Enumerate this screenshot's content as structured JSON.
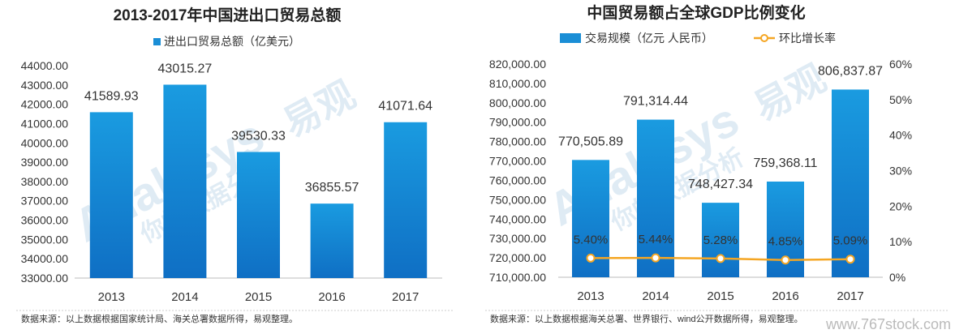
{
  "colors": {
    "bar_top": "#1a9be0",
    "bar_bottom": "#0f6fc4",
    "line": "#f5a623",
    "text": "#333333"
  },
  "charts": {
    "left": {
      "title": "2013-2017年中国进出口贸易总额",
      "source": "数据来源：以上数据根据国家统计局、海关总署数据所得，易观整理。"
    },
    "right": {
      "title": "中国贸易额占全球GDP比例变化",
      "source": "数据来源：以上数据根据海关总署、世界银行、wind公开数据所得，易观整理。",
      "watermark": "www.767stock.com"
    }
  },
  "watermarks": [
    "易观",
    "你的数据分析",
    "Analysys"
  ],
  "chart_data": [
    {
      "type": "bar",
      "title": "2013-2017年中国进出口贸易总额",
      "categories": [
        "2013",
        "2014",
        "2015",
        "2016",
        "2017"
      ],
      "series": [
        {
          "name": "进出口贸易总额（亿美元）",
          "values": [
            41589.93,
            43015.27,
            39530.33,
            36855.57,
            41071.64
          ],
          "labels": [
            "41589.93",
            "43015.27",
            "39530.33",
            "36855.57",
            "41071.64"
          ]
        }
      ],
      "ylim": [
        33000,
        44000
      ],
      "yticks": [
        "33000.00",
        "34000.00",
        "35000.00",
        "36000.00",
        "37000.00",
        "38000.00",
        "39000.00",
        "40000.00",
        "41000.00",
        "42000.00",
        "43000.00",
        "44000.00"
      ],
      "legend": "top",
      "grid": false
    },
    {
      "type": "bar+line",
      "title": "中国贸易额占全球GDP比例变化",
      "categories": [
        "2013",
        "2014",
        "2015",
        "2016",
        "2017"
      ],
      "series": [
        {
          "name": "交易规模（亿元 人民币）",
          "type": "bar",
          "axis": "left",
          "values": [
            770505.89,
            791314.44,
            748427.34,
            759368.11,
            806837.87
          ],
          "labels": [
            "770,505.89",
            "791,314.44",
            "748,427.34",
            "759,368.11",
            "806,837.87"
          ]
        },
        {
          "name": "环比增长率",
          "type": "line",
          "axis": "right",
          "values": [
            5.4,
            5.44,
            5.28,
            4.85,
            5.09
          ],
          "labels": [
            "5.40%",
            "5.44%",
            "5.28%",
            "4.85%",
            "5.09%"
          ]
        }
      ],
      "ylim": [
        710000,
        820000
      ],
      "yticks": [
        "710,000.00",
        "720,000.00",
        "730,000.00",
        "740,000.00",
        "750,000.00",
        "760,000.00",
        "770,000.00",
        "780,000.00",
        "790,000.00",
        "800,000.00",
        "810,000.00",
        "820,000.00"
      ],
      "y2lim": [
        0,
        60
      ],
      "y2ticks": [
        "0%",
        "10%",
        "20%",
        "30%",
        "40%",
        "50%",
        "60%"
      ],
      "legend": "top",
      "grid": false
    }
  ]
}
